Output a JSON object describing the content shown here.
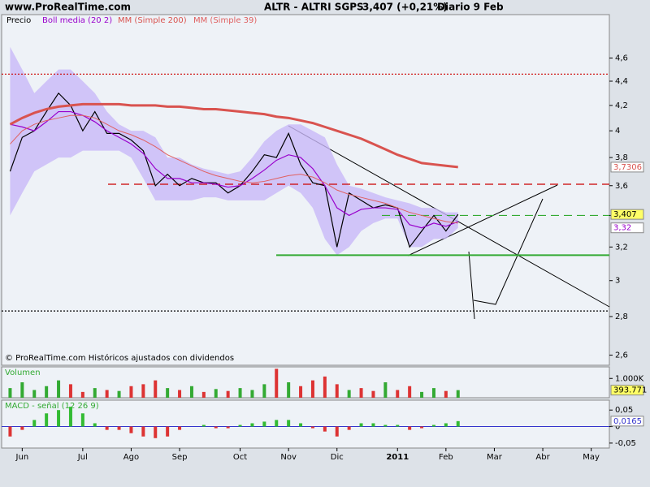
{
  "header": {
    "site": "www.ProRealTime.com",
    "symbol": "ALTR - ALTRI SGPS",
    "quote": "3,407 (+0,21%)",
    "period": "Diario  9 Feb"
  },
  "chart_data": [
    {
      "type": "line",
      "log_scale": true,
      "ylim": [
        2.55,
        5.0
      ],
      "yticks": [
        {
          "value": 2.6,
          "label": "2,6"
        },
        {
          "value": 2.8,
          "label": "2,8"
        },
        3,
        {
          "value": 3.2,
          "label": "3,2"
        },
        {
          "value": 3.4,
          "label": "3,4"
        },
        {
          "value": 3.6,
          "label": "3,6"
        },
        {
          "value": 3.8,
          "label": "3,8"
        },
        4,
        {
          "value": 4.2,
          "label": "4,2"
        },
        {
          "value": 4.4,
          "label": "4,4"
        },
        {
          "value": 4.6,
          "label": "4,6"
        }
      ],
      "annotation": "© ProRealTime.com Históricos ajustados con dividendos",
      "series": [
        {
          "name": "Precio",
          "color": "#000000",
          "label_background": "#ffff66",
          "values": [
            3.7,
            3.95,
            4.0,
            4.15,
            4.3,
            4.2,
            4.0,
            4.15,
            3.98,
            3.98,
            3.93,
            3.85,
            3.6,
            3.68,
            3.6,
            3.65,
            3.62,
            3.62,
            3.55,
            3.6,
            3.7,
            3.82,
            3.8,
            3.98,
            3.75,
            3.62,
            3.6,
            3.2,
            3.55,
            3.5,
            3.45,
            3.47,
            3.45,
            3.2,
            3.3,
            3.4,
            3.3,
            3.407,
            null,
            null,
            null,
            null,
            null,
            null,
            null,
            null,
            null,
            null,
            null,
            null
          ],
          "value_labels": [
            null,
            null,
            null,
            null,
            null,
            null,
            null,
            null,
            null,
            null,
            null,
            null,
            null,
            null,
            null,
            null,
            null,
            null,
            null,
            null,
            null,
            null,
            null,
            null,
            null,
            null,
            null,
            null,
            null,
            null,
            null,
            null,
            null,
            null,
            null,
            null,
            null,
            "3,407",
            null,
            null,
            null,
            null,
            null,
            null,
            null,
            null,
            null,
            null,
            null,
            null
          ]
        },
        {
          "name": "Boll media (20 2)",
          "color": "#9900cc",
          "values": [
            4.05,
            4.03,
            4.0,
            4.07,
            4.15,
            4.15,
            4.12,
            4.07,
            4.0,
            3.95,
            3.9,
            3.83,
            3.72,
            3.65,
            3.65,
            3.62,
            3.62,
            3.61,
            3.59,
            3.6,
            3.65,
            3.71,
            3.78,
            3.82,
            3.8,
            3.72,
            3.6,
            3.45,
            3.4,
            3.44,
            3.45,
            3.45,
            3.44,
            3.34,
            3.32,
            3.35,
            3.33,
            3.36,
            null,
            null,
            null,
            null,
            null,
            null,
            null,
            null,
            null,
            null,
            null,
            null
          ]
        },
        {
          "name": "MM (Simple 200)",
          "color": "#d9534f",
          "width": 3,
          "label_background": "#ffffff",
          "values": [
            4.05,
            4.1,
            4.14,
            4.17,
            4.19,
            4.2,
            4.21,
            4.21,
            4.21,
            4.21,
            4.2,
            4.2,
            4.2,
            4.19,
            4.19,
            4.18,
            4.17,
            4.17,
            4.16,
            4.15,
            4.14,
            4.13,
            4.11,
            4.1,
            4.08,
            4.06,
            4.03,
            4.0,
            3.97,
            3.94,
            3.9,
            3.86,
            3.82,
            3.79,
            3.76,
            3.75,
            3.74,
            3.7306,
            null,
            null,
            null,
            null,
            null,
            null,
            null,
            null,
            null,
            null,
            null,
            null
          ],
          "value_labels": [
            null,
            null,
            null,
            null,
            null,
            null,
            null,
            null,
            null,
            null,
            null,
            null,
            null,
            null,
            null,
            null,
            null,
            null,
            null,
            null,
            null,
            null,
            null,
            null,
            null,
            null,
            null,
            null,
            null,
            null,
            null,
            null,
            null,
            null,
            null,
            null,
            null,
            "3,7306",
            null,
            null,
            null,
            null,
            null,
            null,
            null,
            null,
            null,
            null,
            null,
            null
          ]
        },
        {
          "name": "MM (Simple 39)",
          "color": "#e06060",
          "width": 1,
          "values": [
            3.9,
            4.0,
            4.05,
            4.08,
            4.1,
            4.12,
            4.12,
            4.1,
            4.05,
            4.0,
            3.97,
            3.93,
            3.88,
            3.82,
            3.78,
            3.74,
            3.7,
            3.67,
            3.65,
            3.63,
            3.62,
            3.63,
            3.65,
            3.67,
            3.68,
            3.66,
            3.62,
            3.57,
            3.54,
            3.52,
            3.5,
            3.48,
            3.45,
            3.42,
            3.4,
            3.38,
            3.36,
            3.35,
            null,
            null,
            null,
            null,
            null,
            null,
            null,
            null,
            null,
            null,
            null,
            null
          ]
        }
      ],
      "band": {
        "color": "#c8b8f8",
        "label_background": "#ffffff",
        "label_color": "#9900cc",
        "upper": [
          4.7,
          4.5,
          4.3,
          4.4,
          4.5,
          4.5,
          4.4,
          4.3,
          4.15,
          4.05,
          4.0,
          4.0,
          3.95,
          3.8,
          3.8,
          3.75,
          3.72,
          3.7,
          3.68,
          3.7,
          3.8,
          3.92,
          4.0,
          4.05,
          4.05,
          4.0,
          3.95,
          3.75,
          3.6,
          3.58,
          3.55,
          3.52,
          3.5,
          3.48,
          3.45,
          3.45,
          3.42,
          3.42,
          null,
          null,
          null,
          null,
          null,
          null,
          null,
          null,
          null,
          null,
          null,
          null
        ],
        "lower": [
          3.4,
          3.55,
          3.7,
          3.75,
          3.8,
          3.8,
          3.85,
          3.85,
          3.85,
          3.85,
          3.8,
          3.65,
          3.5,
          3.5,
          3.5,
          3.5,
          3.52,
          3.52,
          3.5,
          3.5,
          3.5,
          3.5,
          3.55,
          3.6,
          3.55,
          3.45,
          3.25,
          3.15,
          3.2,
          3.3,
          3.35,
          3.38,
          3.38,
          3.2,
          3.2,
          3.25,
          3.25,
          3.32,
          null,
          null,
          null,
          null,
          null,
          null,
          null,
          null,
          null,
          null,
          null,
          null
        ],
        "value_labels": [
          null,
          null,
          null,
          null,
          null,
          null,
          null,
          null,
          null,
          null,
          null,
          null,
          null,
          null,
          null,
          null,
          null,
          null,
          null,
          null,
          null,
          null,
          null,
          null,
          null,
          null,
          null,
          null,
          null,
          null,
          null,
          null,
          null,
          null,
          null,
          null,
          null,
          "3,32",
          null,
          null,
          null,
          null,
          null,
          null,
          null,
          null,
          null,
          null,
          null,
          null
        ]
      },
      "levels": [
        {
          "value": 4.46,
          "color": "#cc0000",
          "style": "dotted"
        },
        {
          "value": 3.61,
          "color": "#cc0000",
          "style": "dashed"
        },
        {
          "value": 3.4,
          "color": "#33aa33",
          "style": "dashed"
        },
        {
          "value": 3.15,
          "color": "#33aa33",
          "style": "solid"
        },
        {
          "value": 2.83,
          "color": "#000000",
          "style": "dotted"
        }
      ]
    },
    {
      "type": "bar",
      "title": "Volumen",
      "ylim": [
        0,
        1600
      ],
      "yticks": [
        {
          "value": 1000,
          "label": "1.000K"
        }
      ],
      "colors": {
        "up": "#33aa33",
        "down": "#dd3333"
      },
      "label_background": "#ffff66",
      "values": [
        500,
        800,
        400,
        600,
        900,
        700,
        300,
        500,
        400,
        350,
        600,
        700,
        900,
        500,
        400,
        600,
        300,
        450,
        350,
        500,
        400,
        700,
        1500,
        800,
        600,
        900,
        1100,
        700,
        400,
        500,
        350,
        800,
        400,
        600,
        300,
        500,
        350,
        393.771,
        null,
        null,
        null,
        null,
        null,
        null,
        null,
        null,
        null,
        null,
        null,
        null
      ],
      "value_labels": [
        null,
        null,
        null,
        null,
        null,
        null,
        null,
        null,
        null,
        null,
        null,
        null,
        null,
        null,
        null,
        null,
        null,
        null,
        null,
        null,
        null,
        null,
        null,
        null,
        null,
        null,
        null,
        null,
        null,
        null,
        null,
        null,
        null,
        null,
        null,
        null,
        null,
        "393.771",
        null,
        null,
        null,
        null,
        null,
        null,
        null,
        null,
        null,
        null,
        null,
        null
      ]
    },
    {
      "type": "bar",
      "title": "MACD - señal (12 26 9)",
      "ylim": [
        -0.065,
        0.08
      ],
      "yticks": [
        {
          "value": 0.05,
          "label": "0,05"
        },
        0,
        {
          "value": -0.05,
          "label": "-0,05"
        }
      ],
      "colors": {
        "up": "#33bb33",
        "down": "#dd3333",
        "zero": "#3333cc"
      },
      "label_background": "#ffffff",
      "categories": [
        null,
        "Jun",
        null,
        null,
        null,
        null,
        "Jul",
        null,
        null,
        null,
        "Ago",
        null,
        null,
        null,
        "Sep",
        null,
        null,
        null,
        null,
        "Oct",
        null,
        null,
        null,
        "Nov",
        null,
        null,
        null,
        "Dic",
        null,
        null,
        null,
        null,
        "2011",
        null,
        null,
        null,
        "Feb",
        null,
        null,
        null,
        "Mar",
        null,
        null,
        null,
        "Abr",
        null,
        null,
        null,
        "May",
        null
      ],
      "values": [
        -0.03,
        -0.01,
        0.02,
        0.04,
        0.05,
        0.06,
        0.04,
        0.01,
        -0.01,
        -0.01,
        -0.02,
        -0.03,
        -0.035,
        -0.03,
        -0.01,
        0.0,
        0.005,
        -0.005,
        -0.005,
        0.005,
        0.01,
        0.015,
        0.02,
        0.02,
        0.01,
        -0.005,
        -0.015,
        -0.03,
        -0.01,
        0.01,
        0.01,
        0.005,
        0.005,
        -0.01,
        -0.005,
        0.005,
        0.01,
        0.0165,
        null,
        null,
        null,
        null,
        null,
        null,
        null,
        null,
        null,
        null,
        null,
        null
      ],
      "value_labels": [
        null,
        null,
        null,
        null,
        null,
        null,
        null,
        null,
        null,
        null,
        null,
        null,
        null,
        null,
        null,
        null,
        null,
        null,
        null,
        null,
        null,
        null,
        null,
        null,
        null,
        null,
        null,
        null,
        null,
        null,
        null,
        null,
        null,
        null,
        null,
        null,
        null,
        "0,0165",
        null,
        null,
        null,
        null,
        null,
        null,
        null,
        null,
        null,
        null,
        null,
        null
      ]
    }
  ]
}
